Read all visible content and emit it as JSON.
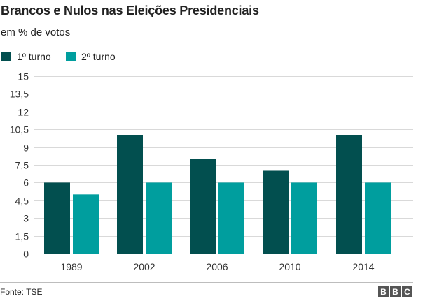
{
  "chart_data": {
    "type": "bar",
    "title": "Brancos e Nulos nas Eleições Presidenciais",
    "subtitle": "em % de votos",
    "categories": [
      "1989",
      "2002",
      "2006",
      "2010",
      "2014"
    ],
    "series": [
      {
        "name": "1º turno",
        "color": "#024f4f",
        "values": [
          6,
          10,
          8,
          7,
          10
        ]
      },
      {
        "name": "2º turno",
        "color": "#009e9e",
        "values": [
          5,
          6,
          6,
          6,
          6
        ]
      }
    ],
    "ylim": [
      0,
      15
    ],
    "yticks": [
      "0",
      "1,5",
      "3",
      "4,5",
      "6",
      "7,5",
      "9",
      "10,5",
      "12",
      "13,5",
      "15"
    ],
    "ytick_values": [
      0,
      1.5,
      3,
      4.5,
      6,
      7.5,
      9,
      10.5,
      12,
      13.5,
      15
    ],
    "xlabel": "",
    "ylabel": "",
    "grid": true,
    "legend": "top-left"
  },
  "footer": {
    "source": "Fonte: TSE",
    "logo_letters": [
      "B",
      "B",
      "C"
    ]
  }
}
